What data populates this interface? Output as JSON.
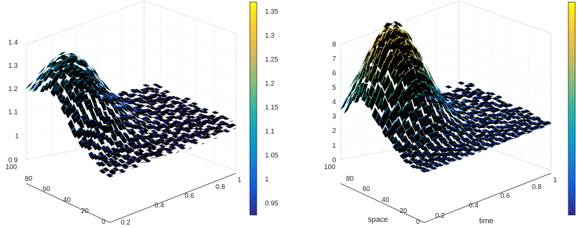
{
  "chart_data": [
    {
      "type": "surface",
      "x_axis": {
        "ticks": [
          "0.2",
          "0.4",
          "0.6",
          "0.8",
          "1"
        ],
        "range": [
          0,
          1
        ],
        "label": ""
      },
      "y_axis": {
        "ticks": [
          "0",
          "20",
          "40",
          "60",
          "80",
          "100"
        ],
        "range": [
          0,
          100
        ],
        "label": ""
      },
      "z_axis": {
        "ticks": [
          "0.9",
          "1",
          "1.1",
          "1.2",
          "1.3",
          "1.4"
        ],
        "range": [
          0.9,
          1.4
        ]
      },
      "colorbar": {
        "ticks": [
          "0.95",
          "1",
          "1.05",
          "1.1",
          "1.15",
          "1.2",
          "1.25",
          "1.3",
          "1.35"
        ],
        "range": [
          0.92,
          1.37
        ]
      },
      "colormap": "parula",
      "grid": true
    },
    {
      "type": "surface",
      "x_axis": {
        "ticks": [
          "0.2",
          "0.4",
          "0.6",
          "0.8",
          "1"
        ],
        "range": [
          0,
          1
        ],
        "label": "time"
      },
      "y_axis": {
        "ticks": [
          "0",
          "20",
          "40",
          "60",
          "80",
          "100"
        ],
        "range": [
          0,
          100
        ],
        "label": "space"
      },
      "z_axis": {
        "ticks": [
          "0",
          "1",
          "2",
          "3",
          "4",
          "5",
          "6",
          "7",
          "8"
        ],
        "range": [
          0,
          8
        ]
      },
      "colorbar": {
        "ticks": [],
        "range": [
          0,
          7.9
        ]
      },
      "colormap": "parula",
      "grid": true
    }
  ]
}
